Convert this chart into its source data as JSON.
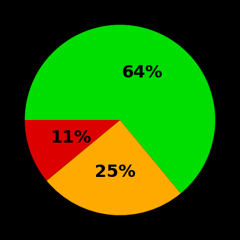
{
  "slices": [
    64,
    25,
    11
  ],
  "colors": [
    "#00dd00",
    "#ffaa00",
    "#dd0000"
  ],
  "labels": [
    "64%",
    "25%",
    "11%"
  ],
  "background_color": "#000000",
  "text_color": "#000000",
  "startangle": 180,
  "label_fontsize": 18,
  "label_fontweight": "bold",
  "label_radii": [
    0.55,
    0.55,
    0.55
  ]
}
